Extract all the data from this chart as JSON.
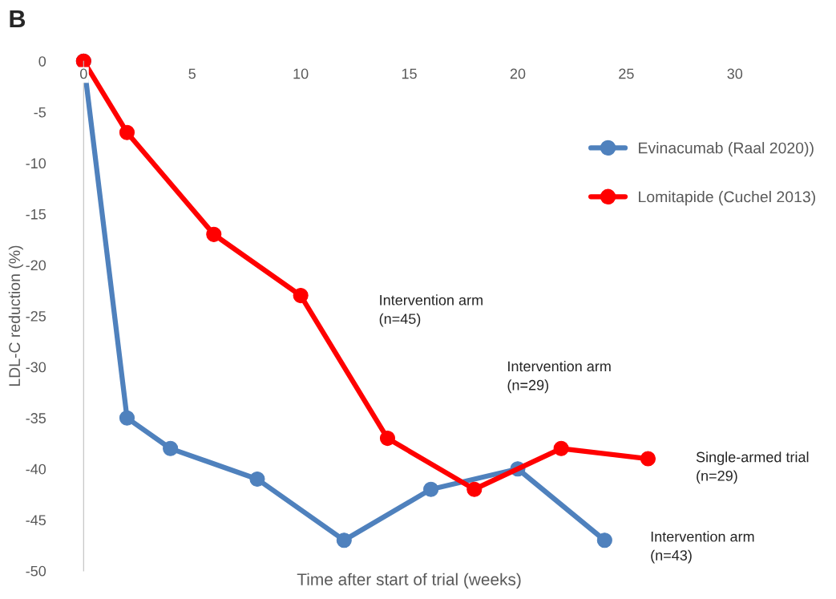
{
  "chart_data": {
    "type": "line",
    "xlabel": "Time after start of trial (weeks)",
    "ylabel": "LDL-C reduction (%)",
    "xlim": [
      0,
      30
    ],
    "xticks": [
      0,
      5,
      10,
      15,
      20,
      25,
      30
    ],
    "ylim": [
      -50,
      0
    ],
    "yticks": [
      -50,
      -45,
      -40,
      -35,
      -30,
      -25,
      -20,
      -15,
      -10,
      -5,
      0
    ],
    "series": [
      {
        "name": "Evinacumab (Raal 2020))",
        "color": "#4f81bd",
        "x": [
          0,
          2,
          4,
          8,
          12,
          16,
          20,
          24
        ],
        "values": [
          0,
          -35,
          -38,
          -41,
          -47,
          -42,
          -40,
          -47
        ]
      },
      {
        "name": "Lomitapide (Cuchel 2013)",
        "color": "#ff0000",
        "x": [
          0,
          2,
          6,
          10,
          14,
          18,
          22,
          26
        ],
        "values": [
          0,
          -7,
          -17,
          -23,
          -37,
          -42,
          -38,
          -39
        ]
      }
    ],
    "marker": "circle",
    "grid": false,
    "legend": "right",
    "annotations": [
      "B",
      "Intervention arm\n(n=45)",
      "Intervention arm\n(n=29)",
      "Single-armed trial\n(n=29)",
      "Intervention arm\n(n=43)"
    ]
  }
}
